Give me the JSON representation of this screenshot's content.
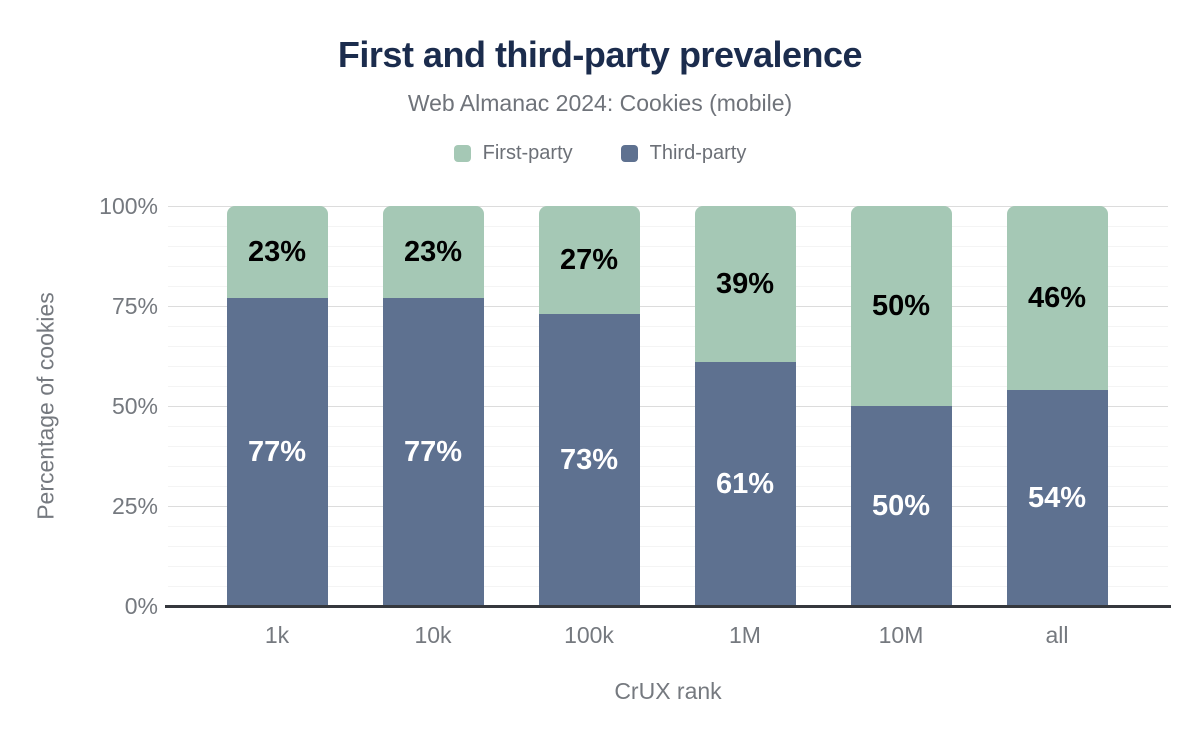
{
  "chart_data": {
    "type": "bar",
    "stacked": true,
    "title": "First and third-party prevalence",
    "subtitle": "Web Almanac 2024: Cookies (mobile)",
    "xlabel": "CrUX rank",
    "ylabel": "Percentage of cookies",
    "categories": [
      "1k",
      "10k",
      "100k",
      "1M",
      "10M",
      "all"
    ],
    "series": [
      {
        "name": "Third-party",
        "color": "#5e7190",
        "label_color": "#ffffff",
        "values": [
          77,
          77,
          73,
          61,
          50,
          54
        ]
      },
      {
        "name": "First-party",
        "color": "#a5c8b5",
        "label_color": "#000000",
        "values": [
          23,
          23,
          27,
          39,
          50,
          46
        ]
      }
    ],
    "legend": [
      {
        "label": "First-party",
        "color": "#a5c8b5"
      },
      {
        "label": "Third-party",
        "color": "#5e7190"
      }
    ],
    "ylim": [
      0,
      100
    ],
    "yticks": [
      "0%",
      "25%",
      "50%",
      "75%",
      "100%"
    ],
    "ytick_values": [
      0,
      25,
      50,
      75,
      100
    ],
    "grid": "horizontal minor lines every 5%, darker lines every 25%, legend at top center",
    "value_suffix": "%",
    "title_color": "#1b2c4d",
    "text_color": "#75797f",
    "axis_line_color": "#35383d"
  }
}
